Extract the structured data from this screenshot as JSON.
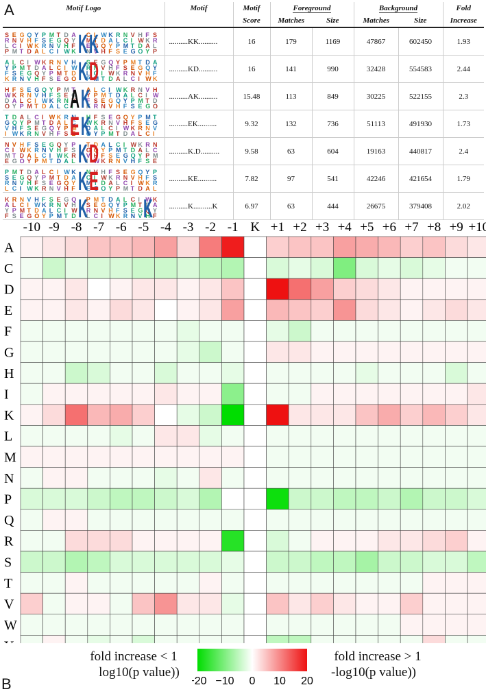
{
  "panel_a_label": "A",
  "panel_b_label": "B",
  "table": {
    "headers": {
      "motif_logo": "Motif Logo",
      "motif": "Motif",
      "motif_score_1": "Motif",
      "motif_score_2": "Score",
      "foreground": "Foreground",
      "background": "Background",
      "fold_1": "Fold",
      "fold_2": "Increase",
      "matches": "Matches",
      "size": "Size"
    },
    "rows": [
      {
        "motif": "..........KK..........",
        "score": "16",
        "fg_matches": "179",
        "fg_size": "1169",
        "bg_matches": "47867",
        "bg_size": "602450",
        "fold": "1.93",
        "logo_letters": [
          "K",
          "K"
        ],
        "logo_colors": [
          "#1f5fa8",
          "#1f5fa8"
        ]
      },
      {
        "motif": "..........KD..........",
        "score": "16",
        "fg_matches": "141",
        "fg_size": "990",
        "bg_matches": "32428",
        "bg_size": "554583",
        "fold": "2.44",
        "logo_letters": [
          "K",
          "D"
        ],
        "logo_colors": [
          "#1f5fa8",
          "#d62020"
        ]
      },
      {
        "motif": "..........AK..........",
        "score": "15.48",
        "fg_matches": "113",
        "fg_size": "849",
        "bg_matches": "30225",
        "bg_size": "522155",
        "fold": "2.3",
        "logo_letters": [
          "A",
          "K"
        ],
        "logo_colors": [
          "#111111",
          "#1f5fa8"
        ]
      },
      {
        "motif": "..........EK..........",
        "score": "9.32",
        "fg_matches": "132",
        "fg_size": "736",
        "bg_matches": "51113",
        "bg_size": "491930",
        "fold": "1.73",
        "logo_letters": [
          "E",
          "K"
        ],
        "logo_colors": [
          "#d62020",
          "#1f5fa8"
        ]
      },
      {
        "motif": "..........K.D..........",
        "score": "9.58",
        "fg_matches": "63",
        "fg_size": "604",
        "bg_matches": "19163",
        "bg_size": "440817",
        "fold": "2.4",
        "logo_letters": [
          "K",
          "D"
        ],
        "logo_colors": [
          "#1f5fa8",
          "#d62020"
        ]
      },
      {
        "motif": "..........KE..........",
        "score": "7.82",
        "fg_matches": "97",
        "fg_size": "541",
        "bg_matches": "42246",
        "bg_size": "421654",
        "fold": "1.79",
        "logo_letters": [
          "K",
          "E"
        ],
        "logo_colors": [
          "#1f5fa8",
          "#d62020"
        ]
      },
      {
        "motif": "..........K..........K",
        "score": "6.97",
        "fg_matches": "63",
        "fg_size": "444",
        "bg_matches": "26675",
        "bg_size": "379408",
        "fold": "2.02",
        "logo_letters": [
          "K",
          "K"
        ],
        "logo_colors": [
          "#1f5fa8",
          "#1f5fa8"
        ]
      }
    ]
  },
  "chart_data": {
    "type": "heatmap",
    "x": [
      "-10",
      "-9",
      "-8",
      "-7",
      "-6",
      "-5",
      "-4",
      "-3",
      "-2",
      "-1",
      "K",
      "+1",
      "+2",
      "+3",
      "+4",
      "+5",
      "+6",
      "+7",
      "+8",
      "+9",
      "+10"
    ],
    "y": [
      "A",
      "C",
      "D",
      "E",
      "F",
      "G",
      "H",
      "I",
      "K",
      "L",
      "M",
      "N",
      "P",
      "Q",
      "R",
      "S",
      "T",
      "V",
      "W",
      "Y"
    ],
    "values": [
      [
        1,
        2,
        3,
        5,
        5,
        6,
        8,
        3,
        11,
        19,
        0,
        4,
        5,
        5,
        8,
        7,
        6,
        4,
        5,
        3,
        2
      ],
      [
        -1,
        -4,
        -2,
        -3,
        -3,
        -4,
        -4,
        -3,
        -5,
        -6,
        0,
        -3,
        -2,
        -3,
        -10,
        -3,
        -2,
        -3,
        -2,
        -1,
        -1
      ],
      [
        1,
        1,
        2,
        0,
        1,
        2,
        2,
        1,
        2,
        5,
        0,
        20,
        12,
        8,
        4,
        3,
        2,
        1,
        1,
        1,
        1
      ],
      [
        1,
        1,
        2,
        1,
        3,
        2,
        0,
        1,
        2,
        8,
        0,
        6,
        5,
        4,
        9,
        3,
        2,
        1,
        2,
        3,
        2
      ],
      [
        -1,
        -1,
        -1,
        -1,
        -1,
        -1,
        -1,
        -2,
        -1,
        -1,
        0,
        -2,
        -4,
        -1,
        -1,
        -1,
        -1,
        -1,
        -1,
        -1,
        -1
      ],
      [
        -1,
        -1,
        -1,
        -1,
        -1,
        -1,
        -1,
        -2,
        -4,
        -1,
        0,
        2,
        2,
        1,
        1,
        1,
        1,
        1,
        1,
        1,
        1
      ],
      [
        -1,
        -1,
        -4,
        -3,
        -1,
        -1,
        -3,
        -1,
        -1,
        -2,
        0,
        -1,
        -1,
        -1,
        -1,
        -2,
        -1,
        -1,
        -1,
        -3,
        -1
      ],
      [
        -1,
        1,
        1,
        1,
        1,
        1,
        2,
        1,
        1,
        -9,
        0,
        -1,
        -1,
        1,
        1,
        1,
        1,
        1,
        1,
        1,
        2
      ],
      [
        1,
        3,
        12,
        6,
        7,
        4,
        0,
        -2,
        -4,
        -20,
        0,
        20,
        2,
        2,
        2,
        5,
        7,
        4,
        6,
        4,
        2
      ],
      [
        -1,
        -1,
        -1,
        -1,
        -2,
        -1,
        2,
        2,
        -2,
        -1,
        0,
        -1,
        -1,
        -1,
        -1,
        -1,
        -1,
        -1,
        -1,
        -1,
        -1
      ],
      [
        1,
        1,
        1,
        1,
        1,
        1,
        1,
        1,
        1,
        1,
        0,
        -1,
        -1,
        -1,
        -1,
        -1,
        -1,
        -1,
        -1,
        -1,
        -1
      ],
      [
        -1,
        1,
        1,
        -1,
        -1,
        -1,
        -2,
        -1,
        2,
        -1,
        0,
        -1,
        -1,
        -1,
        -1,
        -1,
        -1,
        -1,
        -1,
        -1,
        -1
      ],
      [
        -3,
        -3,
        -3,
        -4,
        -5,
        -5,
        -4,
        -3,
        -6,
        0,
        0,
        -19,
        -4,
        -4,
        -5,
        -5,
        -4,
        -6,
        -4,
        -4,
        -3
      ],
      [
        -1,
        1,
        1,
        -1,
        -1,
        -1,
        -1,
        -1,
        -1,
        -1,
        0,
        -1,
        -1,
        -1,
        -1,
        -1,
        -1,
        -1,
        -1,
        -1,
        -1
      ],
      [
        -1,
        -1,
        3,
        3,
        3,
        1,
        1,
        1,
        1,
        -17,
        0,
        -3,
        -1,
        1,
        1,
        1,
        2,
        2,
        3,
        4,
        1
      ],
      [
        -4,
        -4,
        -6,
        -5,
        -3,
        -3,
        -3,
        -3,
        -3,
        -2,
        0,
        -4,
        -4,
        -5,
        -5,
        -7,
        -4,
        -4,
        -3,
        -3,
        -5
      ],
      [
        -1,
        -1,
        1,
        -1,
        -1,
        -1,
        -1,
        -1,
        1,
        -1,
        0,
        -1,
        -1,
        -1,
        -1,
        -1,
        -1,
        -1,
        1,
        1,
        1
      ],
      [
        4,
        -1,
        1,
        1,
        -1,
        5,
        9,
        2,
        2,
        -2,
        0,
        5,
        2,
        4,
        2,
        1,
        1,
        4,
        1,
        1,
        1
      ],
      [
        -1,
        -1,
        -1,
        -1,
        -1,
        -1,
        -1,
        -1,
        -1,
        -1,
        0,
        -1,
        -1,
        -1,
        -1,
        -1,
        -1,
        1,
        1,
        1,
        1
      ],
      [
        -1,
        1,
        -1,
        -2,
        -1,
        -3,
        -1,
        -1,
        -1,
        -1,
        0,
        -5,
        -5,
        -1,
        -1,
        -1,
        -1,
        -1,
        3,
        -1,
        -1
      ]
    ],
    "colorbar": {
      "min": -20,
      "max": 20,
      "ticks": [
        "−20",
        "−10",
        "0",
        "10",
        "20"
      ],
      "low_color": "#00dd00",
      "mid_color": "#ffffff",
      "high_color": "#ee1111"
    },
    "legend_left_1": "fold increase < 1",
    "legend_left_2": "log10(p value))",
    "legend_right_1": "fold increase > 1",
    "legend_right_2": "-log10(p value))"
  }
}
